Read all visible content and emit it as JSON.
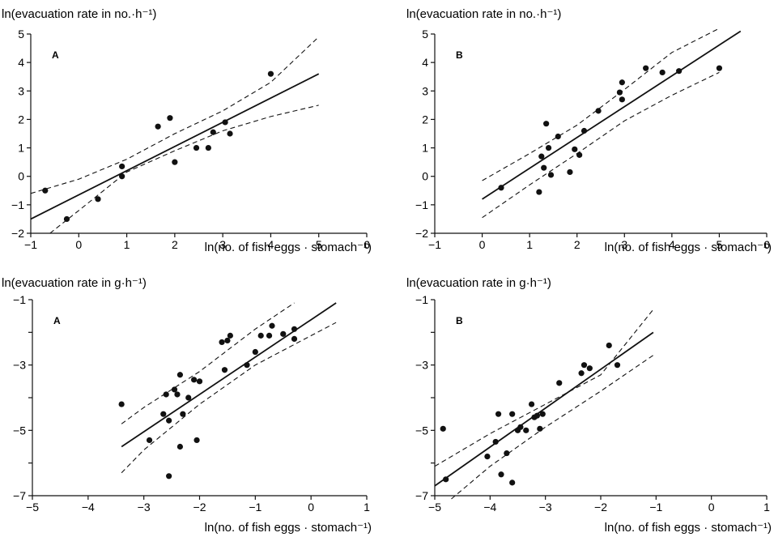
{
  "chart_data": [
    {
      "type": "scatter",
      "panel_label": "A",
      "title": "",
      "xlabel": "ln(no. of fish eggs · stomach⁻¹)",
      "ylabel": "ln(evacuation rate in no.·h⁻¹)",
      "xlim": [
        -1,
        6
      ],
      "ylim": [
        -2,
        5
      ],
      "xticks": [
        "−1",
        "0",
        "1",
        "2",
        "3",
        "4",
        "5",
        "6"
      ],
      "yticks": [
        "−2",
        "−1",
        "0",
        "1",
        "2",
        "3",
        "4",
        "5"
      ],
      "x": [
        -0.7,
        -0.25,
        0.4,
        0.9,
        0.9,
        1.65,
        1.9,
        2.0,
        2.45,
        2.7,
        2.8,
        3.05,
        3.15,
        4.0
      ],
      "y": [
        -0.5,
        -1.5,
        -0.8,
        0.35,
        0.0,
        1.75,
        2.05,
        0.5,
        1.0,
        1.0,
        1.55,
        1.9,
        1.5,
        3.6
      ],
      "fit_line": {
        "x": [
          -1,
          5
        ],
        "y": [
          -1.5,
          3.6
        ]
      },
      "ci_lower": {
        "x": [
          -0.6,
          0,
          1,
          2,
          3,
          4,
          5
        ],
        "y": [
          -2.0,
          -1.2,
          0.15,
          0.9,
          1.6,
          2.1,
          2.5
        ]
      },
      "ci_upper": {
        "x": [
          -1,
          0,
          1,
          2,
          3,
          4,
          5
        ],
        "y": [
          -0.6,
          -0.1,
          0.6,
          1.5,
          2.3,
          3.3,
          4.9
        ]
      }
    },
    {
      "type": "scatter",
      "panel_label": "B",
      "title": "",
      "xlabel": "ln(no. of fish eggs · stomach⁻¹)",
      "ylabel": "ln(evacuation rate in no.·h⁻¹)",
      "xlim": [
        -1,
        6
      ],
      "ylim": [
        -2,
        5
      ],
      "xticks": [
        "−1",
        "0",
        "1",
        "2",
        "3",
        "4",
        "5",
        "6"
      ],
      "yticks": [
        "−2",
        "−1",
        "0",
        "1",
        "2",
        "3",
        "4",
        "5"
      ],
      "x": [
        0.4,
        1.2,
        1.25,
        1.3,
        1.35,
        1.4,
        1.45,
        1.6,
        1.85,
        1.95,
        2.05,
        2.15,
        2.45,
        2.9,
        2.95,
        2.95,
        3.45,
        3.8,
        4.15,
        5.0
      ],
      "y": [
        -0.4,
        -0.55,
        0.7,
        0.3,
        1.85,
        1.0,
        0.05,
        1.4,
        0.15,
        0.95,
        0.75,
        1.6,
        2.3,
        2.95,
        3.3,
        2.7,
        3.8,
        3.65,
        3.7,
        3.8
      ],
      "fit_line": {
        "x": [
          0,
          5.45
        ],
        "y": [
          -0.8,
          5.1
        ]
      },
      "ci_lower": {
        "x": [
          0,
          1,
          2,
          3,
          4,
          5
        ],
        "y": [
          -1.45,
          -0.3,
          0.8,
          1.95,
          2.85,
          3.65
        ]
      },
      "ci_upper": {
        "x": [
          0,
          1,
          2,
          3,
          4,
          5
        ],
        "y": [
          -0.15,
          0.8,
          1.8,
          3.05,
          4.35,
          5.2
        ]
      }
    },
    {
      "type": "scatter",
      "panel_label": "A",
      "title": "",
      "xlabel": "ln(no. of fish eggs · stomach⁻¹)",
      "ylabel": "ln(evacuation rate in g·h⁻¹)",
      "xlim": [
        -5,
        1
      ],
      "ylim": [
        -7,
        -1
      ],
      "xticks": [
        "−5",
        "−4",
        "−3",
        "−2",
        "−1",
        "0",
        "1"
      ],
      "yticks": [
        "−7",
        "",
        "−5",
        "",
        "−3",
        "",
        "−1"
      ],
      "x": [
        -3.4,
        -2.9,
        -2.65,
        -2.6,
        -2.55,
        -2.45,
        -2.4,
        -2.35,
        -2.3,
        -2.2,
        -2.1,
        -2.05,
        -2.0,
        -1.6,
        -1.55,
        -1.5,
        -1.45,
        -1.15,
        -1.0,
        -0.9,
        -0.75,
        -0.7,
        -0.5,
        -0.3,
        -0.3,
        -2.55,
        -2.35
      ],
      "y": [
        -4.2,
        -5.3,
        -4.5,
        -3.9,
        -4.7,
        -3.75,
        -3.9,
        -3.3,
        -4.5,
        -4.0,
        -3.45,
        -5.3,
        -3.5,
        -2.3,
        -3.15,
        -2.25,
        -2.1,
        -3.0,
        -2.6,
        -2.1,
        -2.1,
        -1.8,
        -2.05,
        -1.9,
        -2.2,
        -6.4,
        -5.5
      ],
      "fit_line": {
        "x": [
          -3.4,
          0.45
        ],
        "y": [
          -5.5,
          -1.1
        ]
      },
      "ci_lower": {
        "x": [
          -3.4,
          -3,
          -2,
          -1,
          0,
          0.45
        ],
        "y": [
          -6.3,
          -5.6,
          -4.2,
          -3.0,
          -2.1,
          -1.7
        ]
      },
      "ci_upper": {
        "x": [
          -3.4,
          -3,
          -2,
          -1,
          -0.3
        ],
        "y": [
          -4.8,
          -4.3,
          -3.2,
          -1.9,
          -1.1
        ]
      }
    },
    {
      "type": "scatter",
      "panel_label": "B",
      "title": "",
      "xlabel": "ln(no. of fish eggs · stomach⁻¹)",
      "ylabel": "ln(evacuation rate in g·h⁻¹)",
      "xlim": [
        -5,
        1
      ],
      "ylim": [
        -7,
        -1
      ],
      "xticks": [
        "−5",
        "−4",
        "−3",
        "−2",
        "−1",
        "0",
        "1"
      ],
      "yticks": [
        "−7",
        "",
        "−5",
        "",
        "−3",
        "",
        "−1"
      ],
      "x": [
        -4.85,
        -4.8,
        -4.05,
        -3.9,
        -3.85,
        -3.8,
        -3.7,
        -3.6,
        -3.6,
        -3.5,
        -3.45,
        -3.35,
        -3.25,
        -3.2,
        -3.15,
        -3.1,
        -3.05,
        -2.75,
        -2.35,
        -2.3,
        -2.2,
        -1.85,
        -1.7
      ],
      "y": [
        -4.95,
        -6.5,
        -5.8,
        -5.35,
        -4.5,
        -6.35,
        -5.7,
        -6.6,
        -4.5,
        -5.0,
        -4.9,
        -5.0,
        -4.2,
        -4.6,
        -4.55,
        -4.95,
        -4.5,
        -3.55,
        -3.25,
        -3.0,
        -3.1,
        -2.4,
        -3.0
      ],
      "fit_line": {
        "x": [
          -5,
          -1.05
        ],
        "y": [
          -6.7,
          -2.0
        ]
      },
      "ci_lower": {
        "x": [
          -4.7,
          -4,
          -3,
          -2,
          -1.05
        ],
        "y": [
          -7.1,
          -6.1,
          -4.9,
          -3.8,
          -2.7
        ]
      },
      "ci_upper": {
        "x": [
          -5,
          -4,
          -3,
          -2,
          -1.05
        ],
        "y": [
          -6.1,
          -5.1,
          -4.2,
          -3.3,
          -1.3
        ]
      }
    }
  ]
}
